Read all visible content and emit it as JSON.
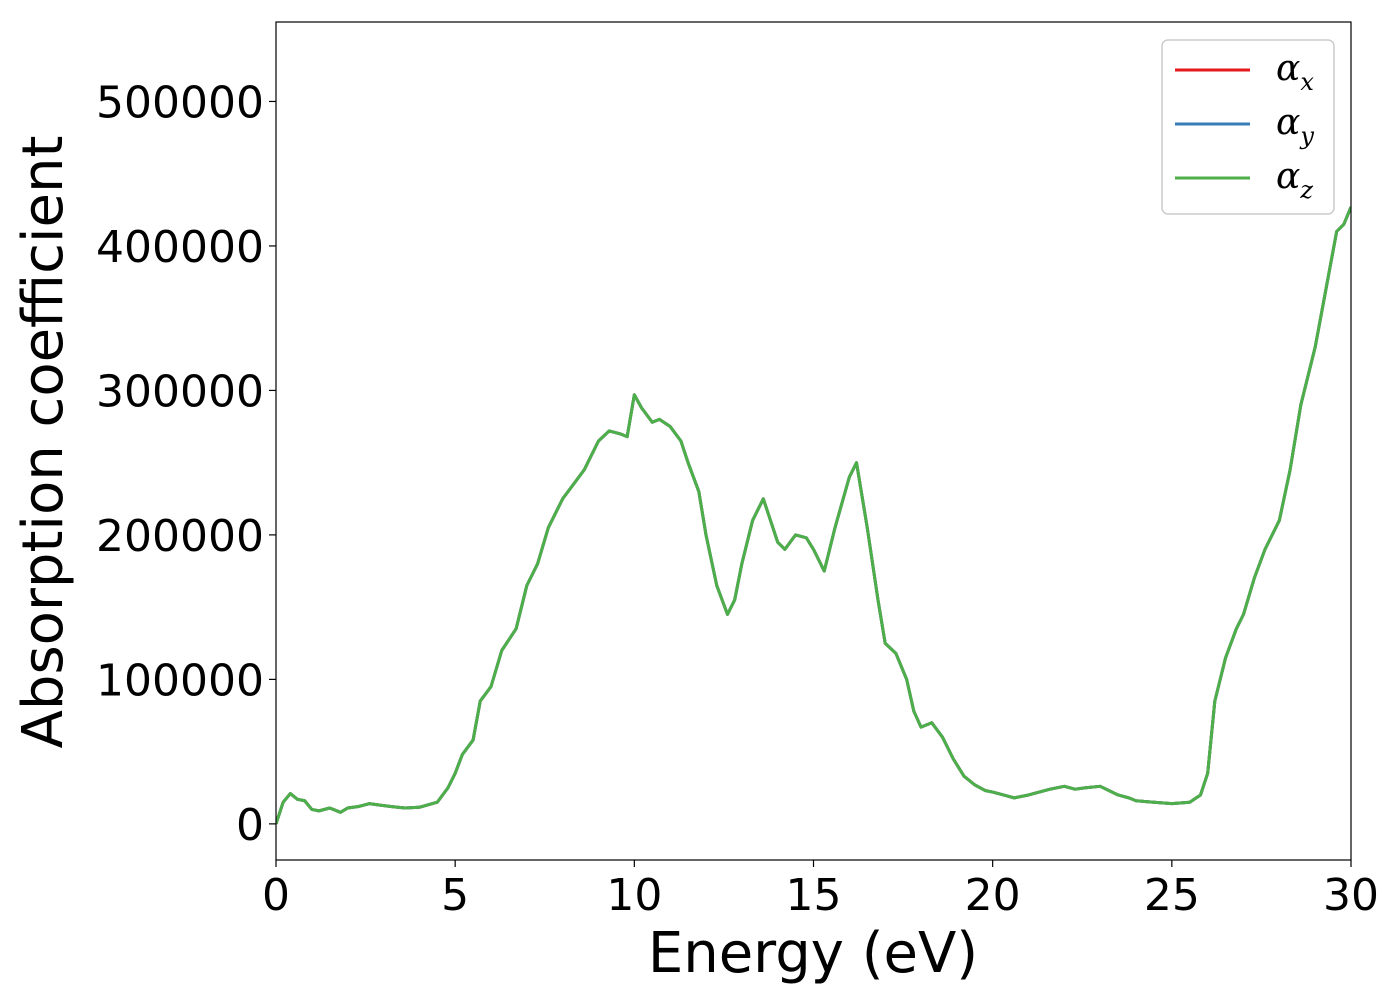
{
  "chart_data": {
    "type": "line",
    "xlabel": "Energy (eV)",
    "ylabel": "Absorption coefficient",
    "xlim": [
      0,
      30
    ],
    "ylim": [
      -25000,
      555000
    ],
    "xticks": [
      0,
      5,
      10,
      15,
      20,
      25,
      30
    ],
    "xtick_labels": [
      "0",
      "5",
      "10",
      "15",
      "20",
      "25",
      "30"
    ],
    "yticks": [
      0,
      100000,
      200000,
      300000,
      400000,
      500000
    ],
    "ytick_labels": [
      "0",
      "100000",
      "200000",
      "300000",
      "400000",
      "500000"
    ],
    "grid": false,
    "legend_position": "top-right",
    "x": [
      0,
      0.2,
      0.4,
      0.6,
      0.8,
      1.0,
      1.2,
      1.5,
      1.8,
      2.0,
      2.3,
      2.6,
      2.9,
      3.2,
      3.6,
      4.0,
      4.5,
      4.8,
      5.0,
      5.2,
      5.5,
      5.7,
      6.0,
      6.3,
      6.7,
      7.0,
      7.3,
      7.6,
      8.0,
      8.3,
      8.6,
      9.0,
      9.3,
      9.6,
      9.8,
      10.0,
      10.2,
      10.5,
      10.7,
      11.0,
      11.3,
      11.5,
      11.8,
      12.0,
      12.3,
      12.6,
      12.8,
      13.0,
      13.3,
      13.6,
      14.0,
      14.2,
      14.5,
      14.8,
      15.0,
      15.3,
      15.6,
      16.0,
      16.2,
      16.5,
      16.8,
      17.0,
      17.3,
      17.6,
      17.8,
      18.0,
      18.3,
      18.6,
      18.9,
      19.2,
      19.5,
      19.8,
      20.0,
      20.3,
      20.6,
      21.0,
      21.3,
      21.6,
      22.0,
      22.3,
      22.6,
      23.0,
      23.5,
      23.8,
      24.0,
      24.5,
      25.0,
      25.5,
      25.8,
      26.0,
      26.2,
      26.5,
      26.8,
      27.0,
      27.3,
      27.6,
      28.0,
      28.3,
      28.6,
      29.0,
      29.3,
      29.6,
      29.8,
      30.0
    ],
    "series": [
      {
        "name": "α",
        "subscript": "x",
        "color": "#e41a1c",
        "values": [
          0,
          15000,
          21000,
          17000,
          16000,
          10000,
          9000,
          11000,
          8000,
          11000,
          12000,
          14000,
          13000,
          12000,
          11000,
          11500,
          15000,
          25000,
          35000,
          48000,
          58000,
          85000,
          95000,
          120000,
          135000,
          165000,
          180000,
          205000,
          225000,
          235000,
          245000,
          265000,
          272000,
          270000,
          268000,
          297000,
          288000,
          278000,
          280000,
          275000,
          265000,
          250000,
          230000,
          200000,
          165000,
          145000,
          155000,
          180000,
          210000,
          225000,
          195000,
          190000,
          200000,
          198000,
          190000,
          175000,
          205000,
          240000,
          250000,
          205000,
          155000,
          125000,
          118000,
          100000,
          78000,
          67000,
          70000,
          60000,
          45000,
          33000,
          27000,
          23000,
          22000,
          20000,
          18000,
          20000,
          22000,
          24000,
          26000,
          24000,
          25000,
          26000,
          20000,
          18000,
          16000,
          15000,
          14000,
          15000,
          20000,
          35000,
          85000,
          115000,
          135000,
          145000,
          170000,
          190000,
          210000,
          245000,
          290000,
          330000,
          370000,
          410000,
          415000,
          427000
        ]
      },
      {
        "name": "α",
        "subscript": "y",
        "color": "#377eb8",
        "values": [
          0,
          15000,
          21000,
          17000,
          16000,
          10000,
          9000,
          11000,
          8000,
          11000,
          12000,
          14000,
          13000,
          12000,
          11000,
          11500,
          15000,
          25000,
          35000,
          48000,
          58000,
          85000,
          95000,
          120000,
          135000,
          165000,
          180000,
          205000,
          225000,
          235000,
          245000,
          265000,
          272000,
          270000,
          268000,
          297000,
          288000,
          278000,
          280000,
          275000,
          265000,
          250000,
          230000,
          200000,
          165000,
          145000,
          155000,
          180000,
          210000,
          225000,
          195000,
          190000,
          200000,
          198000,
          190000,
          175000,
          205000,
          240000,
          250000,
          205000,
          155000,
          125000,
          118000,
          100000,
          78000,
          67000,
          70000,
          60000,
          45000,
          33000,
          27000,
          23000,
          22000,
          20000,
          18000,
          20000,
          22000,
          24000,
          26000,
          24000,
          25000,
          26000,
          20000,
          18000,
          16000,
          15000,
          14000,
          15000,
          20000,
          35000,
          85000,
          115000,
          135000,
          145000,
          170000,
          190000,
          210000,
          245000,
          290000,
          330000,
          370000,
          410000,
          415000,
          427000
        ]
      },
      {
        "name": "α",
        "subscript": "z",
        "color": "#4daf4a",
        "values": [
          0,
          15000,
          21000,
          17000,
          16000,
          10000,
          9000,
          11000,
          8000,
          11000,
          12000,
          14000,
          13000,
          12000,
          11000,
          11500,
          15000,
          25000,
          35000,
          48000,
          58000,
          85000,
          95000,
          120000,
          135000,
          165000,
          180000,
          205000,
          225000,
          235000,
          245000,
          265000,
          272000,
          270000,
          268000,
          297000,
          288000,
          278000,
          280000,
          275000,
          265000,
          250000,
          230000,
          200000,
          165000,
          145000,
          155000,
          180000,
          210000,
          225000,
          195000,
          190000,
          200000,
          198000,
          190000,
          175000,
          205000,
          240000,
          250000,
          205000,
          155000,
          125000,
          118000,
          100000,
          78000,
          67000,
          70000,
          60000,
          45000,
          33000,
          27000,
          23000,
          22000,
          20000,
          18000,
          20000,
          22000,
          24000,
          26000,
          24000,
          25000,
          26000,
          20000,
          18000,
          16000,
          15000,
          14000,
          15000,
          20000,
          35000,
          85000,
          115000,
          135000,
          145000,
          170000,
          190000,
          210000,
          245000,
          290000,
          330000,
          370000,
          410000,
          415000,
          427000
        ]
      }
    ]
  }
}
